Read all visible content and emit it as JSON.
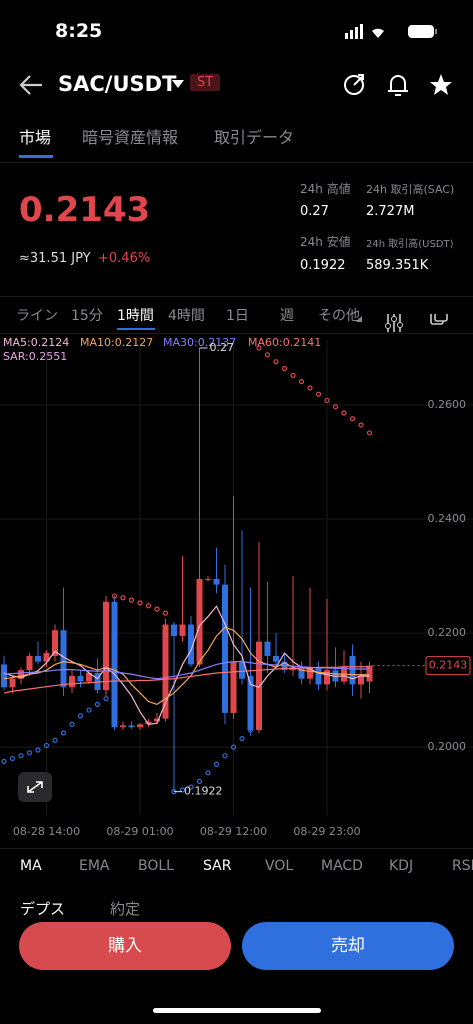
{
  "status_bar": {
    "time": "8:25"
  },
  "header": {
    "pair": "SAC/USDT",
    "badge": "ST"
  },
  "tabs": [
    "市場",
    "暗号資産情報",
    "取引データ"
  ],
  "price": {
    "last": "0.2143",
    "fiat": "≈31.51 JPY",
    "change": "+0.46%"
  },
  "stats": [
    {
      "label": "24h 高値",
      "value": "0.27"
    },
    {
      "label": "24h 取引高(SAC)",
      "value": "2.727M"
    },
    {
      "label": "24h 安値",
      "value": "0.1922"
    },
    {
      "label": "24h 取引高(USDT)",
      "value": "589.351K"
    }
  ],
  "intervals": [
    "ライン",
    "15分",
    "1時間",
    "4時間",
    "1日",
    "週",
    "その他"
  ],
  "indicators": [
    "MA",
    "EMA",
    "BOLL",
    "SAR",
    "VOL",
    "MACD",
    "KDJ",
    "RSI"
  ],
  "bottom_tabs": [
    "デプス",
    "約定"
  ],
  "buttons": {
    "buy": "購入",
    "sell": "売却"
  },
  "chart_data": {
    "type": "candlestick",
    "up_color": "#e0474c",
    "down_color": "#2f6fde",
    "grid": true,
    "ylim": [
      0.1881,
      0.2714
    ],
    "yticks": [
      {
        "value": 0.26,
        "label": "0.2600"
      },
      {
        "value": 0.24,
        "label": "0.2400"
      },
      {
        "value": 0.22,
        "label": "0.2200"
      },
      {
        "value": 0.2,
        "label": "0.2000"
      }
    ],
    "categories": [
      null,
      null,
      null,
      null,
      null,
      "08-28 14:00",
      null,
      null,
      null,
      null,
      null,
      null,
      null,
      null,
      null,
      null,
      "08-29 01:00",
      null,
      null,
      null,
      null,
      null,
      null,
      null,
      null,
      null,
      null,
      "08-29 12:00",
      null,
      null,
      null,
      null,
      null,
      null,
      null,
      null,
      null,
      null,
      "08-29 23:00",
      null,
      null,
      null,
      null,
      null
    ],
    "candles": [
      [
        0.2145,
        0.216,
        0.21,
        0.2105
      ],
      [
        0.2105,
        0.2125,
        0.2095,
        0.212
      ],
      [
        0.212,
        0.214,
        0.211,
        0.2135
      ],
      [
        0.2135,
        0.2165,
        0.2125,
        0.216
      ],
      [
        0.216,
        0.2185,
        0.2145,
        0.215
      ],
      [
        0.215,
        0.217,
        0.214,
        0.2165
      ],
      [
        0.216,
        0.2215,
        0.215,
        0.2205
      ],
      [
        0.2205,
        0.228,
        0.209,
        0.2105
      ],
      [
        0.2105,
        0.2135,
        0.2095,
        0.2125
      ],
      [
        0.2125,
        0.2135,
        0.2105,
        0.2115
      ],
      [
        0.2115,
        0.2135,
        0.211,
        0.213
      ],
      [
        0.213,
        0.2155,
        0.2095,
        0.21
      ],
      [
        0.21,
        0.2265,
        0.209,
        0.2255
      ],
      [
        0.2255,
        0.2265,
        0.203,
        0.2035
      ],
      [
        0.2035,
        0.2045,
        0.203,
        0.2038
      ],
      [
        0.2038,
        0.2045,
        0.2032,
        0.2035
      ],
      [
        0.2035,
        0.2042,
        0.203,
        0.204
      ],
      [
        0.204,
        0.205,
        0.2035,
        0.2045
      ],
      [
        0.2045,
        0.206,
        0.204,
        0.205
      ],
      [
        0.205,
        0.2225,
        0.2045,
        0.2215
      ],
      [
        0.2215,
        0.222,
        0.1922,
        0.2195
      ],
      [
        0.2195,
        0.2335,
        0.2185,
        0.2215
      ],
      [
        0.2215,
        0.223,
        0.214,
        0.2145
      ],
      [
        0.2145,
        0.27,
        0.214,
        0.2295
      ],
      [
        0.2295,
        0.23,
        0.229,
        0.2295
      ],
      [
        0.2295,
        0.235,
        0.227,
        0.2285
      ],
      [
        0.2285,
        0.232,
        0.204,
        0.206
      ],
      [
        0.206,
        0.244,
        0.205,
        0.215
      ],
      [
        0.215,
        0.238,
        0.211,
        0.212
      ],
      [
        0.2125,
        0.228,
        0.202,
        0.203
      ],
      [
        0.203,
        0.236,
        0.2025,
        0.2185
      ],
      [
        0.2185,
        0.229,
        0.213,
        0.216
      ],
      [
        0.216,
        0.22,
        0.214,
        0.215
      ],
      [
        0.215,
        0.2165,
        0.213,
        0.2135
      ],
      [
        0.2135,
        0.23,
        0.2125,
        0.214
      ],
      [
        0.214,
        0.215,
        0.211,
        0.212
      ],
      [
        0.212,
        0.228,
        0.211,
        0.214
      ],
      [
        0.214,
        0.215,
        0.21,
        0.211
      ],
      [
        0.211,
        0.226,
        0.21,
        0.2135
      ],
      [
        0.2135,
        0.2175,
        0.2105,
        0.2115
      ],
      [
        0.2115,
        0.217,
        0.211,
        0.214
      ],
      [
        0.216,
        0.218,
        0.209,
        0.211
      ],
      [
        0.211,
        0.215,
        0.2085,
        0.2125
      ],
      [
        0.2115,
        0.215,
        0.2095,
        0.2143
      ]
    ],
    "series": [
      {
        "name": "MA5:0.2124",
        "color": "#f2b8d8",
        "values": [
          0.213,
          0.2125,
          0.2122,
          0.2128,
          0.2134,
          0.2148,
          0.2168,
          0.2158,
          0.215,
          0.2143,
          0.213,
          0.212,
          0.214,
          0.2128,
          0.211,
          0.209,
          0.2062,
          0.204,
          0.2042,
          0.2078,
          0.211,
          0.2145,
          0.217,
          0.2213,
          0.2229,
          0.2247,
          0.2216,
          0.218,
          0.216,
          0.211,
          0.2105,
          0.2125,
          0.214,
          0.2165,
          0.215,
          0.214,
          0.2137,
          0.213,
          0.2127,
          0.2124,
          0.2125,
          0.212,
          0.2125,
          0.2124
        ]
      },
      {
        "name": "MA10:0.2127",
        "color": "#f5a65b",
        "values": [
          0.212,
          0.2122,
          0.2125,
          0.2128,
          0.213,
          0.2135,
          0.2145,
          0.215,
          0.2148,
          0.2145,
          0.214,
          0.2135,
          0.214,
          0.2135,
          0.2128,
          0.211,
          0.2095,
          0.208,
          0.2075,
          0.2085,
          0.2095,
          0.211,
          0.2125,
          0.215,
          0.217,
          0.2195,
          0.221,
          0.2205,
          0.219,
          0.2165,
          0.215,
          0.2145,
          0.214,
          0.2148,
          0.214,
          0.2135,
          0.2133,
          0.2131,
          0.213,
          0.2128,
          0.2128,
          0.2127,
          0.2127,
          0.2127
        ]
      },
      {
        "name": "MA30:0.2137",
        "color": "#8a7dff",
        "values": [
          0.2128,
          0.2129,
          0.213,
          0.2131,
          0.2132,
          0.2133,
          0.2135,
          0.2136,
          0.2136,
          0.2135,
          0.2134,
          0.2133,
          0.2134,
          0.2132,
          0.213,
          0.2128,
          0.2125,
          0.2122,
          0.212,
          0.2122,
          0.2124,
          0.2127,
          0.213,
          0.2135,
          0.214,
          0.2145,
          0.2148,
          0.215,
          0.215,
          0.2148,
          0.2146,
          0.2145,
          0.2144,
          0.2143,
          0.2142,
          0.2141,
          0.214,
          0.2139,
          0.2139,
          0.2138,
          0.2138,
          0.2137,
          0.2137,
          0.2137
        ]
      },
      {
        "name": "MA60:0.2141",
        "color": "#ff6f6f",
        "values": [
          0.2095,
          0.2098,
          0.21,
          0.2102,
          0.2104,
          0.2106,
          0.2108,
          0.211,
          0.2111,
          0.2112,
          0.2113,
          0.2114,
          0.2115,
          0.2116,
          0.2116,
          0.2116,
          0.2117,
          0.2117,
          0.2118,
          0.2119,
          0.212,
          0.2122,
          0.2124,
          0.2126,
          0.2128,
          0.213,
          0.2131,
          0.2132,
          0.2133,
          0.2134,
          0.2135,
          0.2136,
          0.2137,
          0.2138,
          0.2138,
          0.2139,
          0.2139,
          0.214,
          0.214,
          0.214,
          0.2141,
          0.2141,
          0.2141,
          0.2141
        ]
      },
      {
        "name": "SAR:0.2551",
        "color": "#e7a6e6",
        "style": "dots",
        "values": [
          0.1975,
          0.198,
          0.1985,
          0.199,
          0.1995,
          0.2003,
          0.2012,
          0.2025,
          0.204,
          0.2055,
          0.2065,
          0.2075,
          0.2085,
          0.2265,
          0.2262,
          0.2258,
          0.2253,
          0.2248,
          0.2242,
          0.2235,
          0.1922,
          0.1925,
          0.193,
          0.194,
          0.1955,
          0.197,
          0.1985,
          0.2,
          0.2015,
          0.203,
          0.27,
          0.2688,
          0.2676,
          0.2664,
          0.2652,
          0.2641,
          0.263,
          0.2619,
          0.2608,
          0.2597,
          0.2586,
          0.2576,
          0.2565,
          0.2551
        ]
      }
    ],
    "last_price": 0.2143,
    "max_label": 0.27,
    "min_label": 0.1922
  }
}
